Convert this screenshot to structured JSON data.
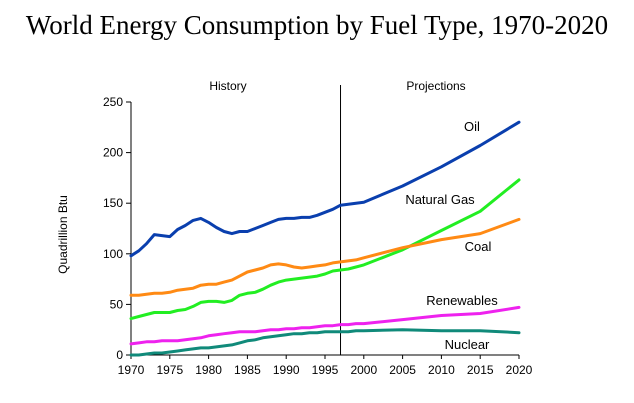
{
  "chart_data": {
    "type": "line",
    "title": "World Energy Consumption by Fuel Type, 1970-2020",
    "xlabel": "",
    "ylabel": "Quadrillion Btu",
    "xlim": [
      1970,
      2020
    ],
    "ylim": [
      0,
      250
    ],
    "x_ticks": [
      1970,
      1975,
      1980,
      1985,
      1990,
      1995,
      2000,
      2005,
      2010,
      2015,
      2020
    ],
    "y_ticks": [
      0,
      50,
      100,
      150,
      200,
      250
    ],
    "grid": false,
    "divider_year": 1997,
    "regions": [
      "History",
      "Projections"
    ],
    "series": [
      {
        "name": "Oil",
        "color": "#0a3fae",
        "points": [
          [
            1970,
            98
          ],
          [
            1971,
            103
          ],
          [
            1972,
            110
          ],
          [
            1973,
            119
          ],
          [
            1974,
            118
          ],
          [
            1975,
            117
          ],
          [
            1976,
            124
          ],
          [
            1977,
            128
          ],
          [
            1978,
            133
          ],
          [
            1979,
            135
          ],
          [
            1980,
            131
          ],
          [
            1981,
            126
          ],
          [
            1982,
            122
          ],
          [
            1983,
            120
          ],
          [
            1984,
            122
          ],
          [
            1985,
            122
          ],
          [
            1986,
            125
          ],
          [
            1987,
            128
          ],
          [
            1988,
            131
          ],
          [
            1989,
            134
          ],
          [
            1990,
            135
          ],
          [
            1991,
            135
          ],
          [
            1992,
            136
          ],
          [
            1993,
            136
          ],
          [
            1994,
            138
          ],
          [
            1995,
            141
          ],
          [
            1996,
            144
          ],
          [
            1997,
            148
          ],
          [
            1998,
            149
          ],
          [
            1999,
            150
          ],
          [
            2000,
            151
          ],
          [
            2005,
            167
          ],
          [
            2010,
            186
          ],
          [
            2015,
            207
          ],
          [
            2020,
            230
          ]
        ]
      },
      {
        "name": "Natural Gas",
        "color": "#22ee22",
        "points": [
          [
            1970,
            36
          ],
          [
            1971,
            38
          ],
          [
            1972,
            40
          ],
          [
            1973,
            42
          ],
          [
            1974,
            42
          ],
          [
            1975,
            42
          ],
          [
            1976,
            44
          ],
          [
            1977,
            45
          ],
          [
            1978,
            48
          ],
          [
            1979,
            52
          ],
          [
            1980,
            53
          ],
          [
            1981,
            53
          ],
          [
            1982,
            52
          ],
          [
            1983,
            54
          ],
          [
            1984,
            59
          ],
          [
            1985,
            61
          ],
          [
            1986,
            62
          ],
          [
            1987,
            65
          ],
          [
            1988,
            69
          ],
          [
            1989,
            72
          ],
          [
            1990,
            74
          ],
          [
            1991,
            75
          ],
          [
            1992,
            76
          ],
          [
            1993,
            77
          ],
          [
            1994,
            78
          ],
          [
            1995,
            80
          ],
          [
            1996,
            83
          ],
          [
            1997,
            84
          ],
          [
            1998,
            85
          ],
          [
            1999,
            87
          ],
          [
            2000,
            89
          ],
          [
            2005,
            104
          ],
          [
            2010,
            123
          ],
          [
            2015,
            142
          ],
          [
            2020,
            173
          ]
        ]
      },
      {
        "name": "Coal",
        "color": "#ff8a14",
        "points": [
          [
            1970,
            59
          ],
          [
            1971,
            59
          ],
          [
            1972,
            60
          ],
          [
            1973,
            61
          ],
          [
            1974,
            61
          ],
          [
            1975,
            62
          ],
          [
            1976,
            64
          ],
          [
            1977,
            65
          ],
          [
            1978,
            66
          ],
          [
            1979,
            69
          ],
          [
            1980,
            70
          ],
          [
            1981,
            70
          ],
          [
            1982,
            72
          ],
          [
            1983,
            74
          ],
          [
            1984,
            78
          ],
          [
            1985,
            82
          ],
          [
            1986,
            84
          ],
          [
            1987,
            86
          ],
          [
            1988,
            89
          ],
          [
            1989,
            90
          ],
          [
            1990,
            89
          ],
          [
            1991,
            87
          ],
          [
            1992,
            86
          ],
          [
            1993,
            87
          ],
          [
            1994,
            88
          ],
          [
            1995,
            89
          ],
          [
            1996,
            91
          ],
          [
            1997,
            92
          ],
          [
            1998,
            93
          ],
          [
            1999,
            94
          ],
          [
            2000,
            96
          ],
          [
            2005,
            106
          ],
          [
            2010,
            114
          ],
          [
            2015,
            120
          ],
          [
            2020,
            134
          ]
        ]
      },
      {
        "name": "Renewables",
        "color": "#ee22ee",
        "points": [
          [
            1970,
            11
          ],
          [
            1971,
            12
          ],
          [
            1972,
            13
          ],
          [
            1973,
            13
          ],
          [
            1974,
            14
          ],
          [
            1975,
            14
          ],
          [
            1976,
            14
          ],
          [
            1977,
            15
          ],
          [
            1978,
            16
          ],
          [
            1979,
            17
          ],
          [
            1980,
            19
          ],
          [
            1981,
            20
          ],
          [
            1982,
            21
          ],
          [
            1983,
            22
          ],
          [
            1984,
            23
          ],
          [
            1985,
            23
          ],
          [
            1986,
            23
          ],
          [
            1987,
            24
          ],
          [
            1988,
            25
          ],
          [
            1989,
            25
          ],
          [
            1990,
            26
          ],
          [
            1991,
            26
          ],
          [
            1992,
            27
          ],
          [
            1993,
            27
          ],
          [
            1994,
            28
          ],
          [
            1995,
            29
          ],
          [
            1996,
            29
          ],
          [
            1997,
            30
          ],
          [
            1998,
            30
          ],
          [
            1999,
            31
          ],
          [
            2000,
            31
          ],
          [
            2005,
            35
          ],
          [
            2010,
            39
          ],
          [
            2015,
            41
          ],
          [
            2020,
            47
          ]
        ]
      },
      {
        "name": "Nuclear",
        "color": "#108a7a",
        "points": [
          [
            1970,
            0
          ],
          [
            1971,
            0
          ],
          [
            1972,
            1
          ],
          [
            1973,
            2
          ],
          [
            1974,
            2
          ],
          [
            1975,
            3
          ],
          [
            1976,
            4
          ],
          [
            1977,
            5
          ],
          [
            1978,
            6
          ],
          [
            1979,
            7
          ],
          [
            1980,
            7
          ],
          [
            1981,
            8
          ],
          [
            1982,
            9
          ],
          [
            1983,
            10
          ],
          [
            1984,
            12
          ],
          [
            1985,
            14
          ],
          [
            1986,
            15
          ],
          [
            1987,
            17
          ],
          [
            1988,
            18
          ],
          [
            1989,
            19
          ],
          [
            1990,
            20
          ],
          [
            1991,
            21
          ],
          [
            1992,
            21
          ],
          [
            1993,
            22
          ],
          [
            1994,
            22
          ],
          [
            1995,
            23
          ],
          [
            1996,
            23
          ],
          [
            1997,
            23
          ],
          [
            1998,
            23
          ],
          [
            1999,
            24
          ],
          [
            2000,
            24
          ],
          [
            2005,
            25
          ],
          [
            2010,
            24
          ],
          [
            2015,
            24
          ],
          [
            2020,
            22
          ]
        ]
      }
    ]
  }
}
